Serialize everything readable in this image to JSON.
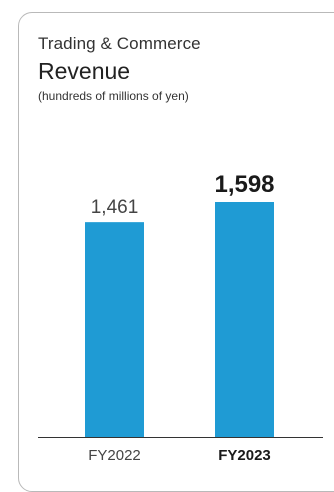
{
  "header": {
    "segment": "Trading & Commerce",
    "title": "Revenue",
    "unit": "(hundreds of millions of yen)"
  },
  "colors": {
    "bar": "#1f9bd4",
    "axis": "#333333",
    "label_normal": "#444444",
    "label_highlight": "#1a1a1a"
  },
  "chart_data": {
    "type": "bar",
    "title": "Revenue",
    "subtitle": "(hundreds of millions of yen)",
    "xlabel": "",
    "ylabel": "",
    "categories": [
      "FY2022",
      "FY2023"
    ],
    "values": [
      1461,
      1598
    ],
    "value_labels": [
      "1,461",
      "1,598"
    ],
    "highlight": [
      false,
      true
    ],
    "ylim": [
      0,
      1598
    ],
    "grid": false,
    "legend": "none"
  }
}
